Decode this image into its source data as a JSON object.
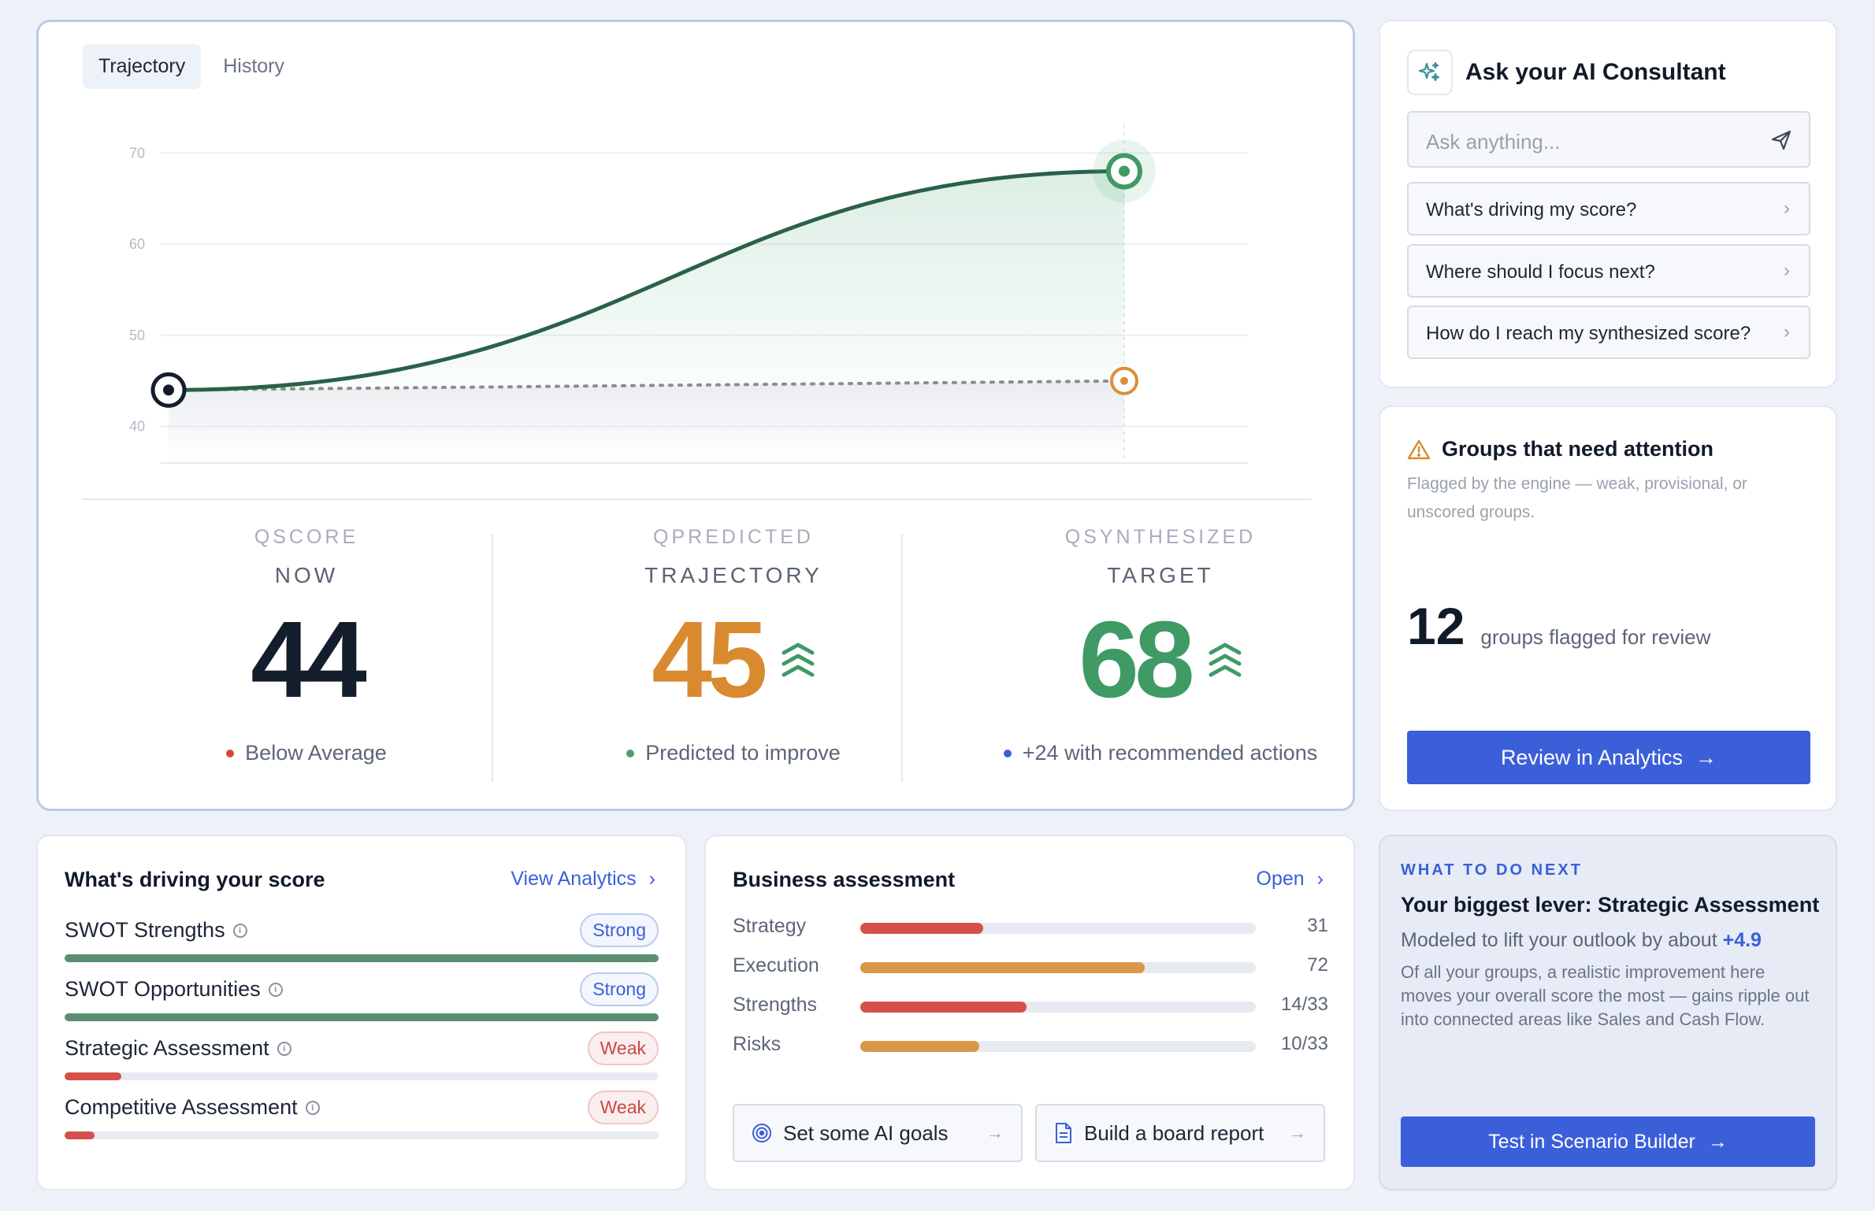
{
  "hero": {
    "tabs": [
      "Trajectory",
      "History"
    ],
    "chart_data": {
      "type": "line",
      "x": [
        "now",
        "target"
      ],
      "series": [
        {
          "values": [
            44,
            68
          ],
          "style": "solid",
          "color": "#2a6147"
        },
        {
          "values": [
            44,
            45
          ],
          "style": "dotted",
          "color": "#d98f3a"
        }
      ],
      "ylim": [
        36,
        74
      ],
      "yticks": [
        "70",
        "60",
        "50",
        "40"
      ]
    },
    "stats": [
      {
        "label1": "QSCORE",
        "label2": "NOW",
        "value": "44",
        "note": "Below Average",
        "color": "#141d2b",
        "dot": "#d9453b"
      },
      {
        "label1": "QPREDICTED",
        "label2": "TRAJECTORY",
        "value": "45",
        "note": "Predicted to improve",
        "color": "#d98a2f",
        "dot": "#4aa06c"
      },
      {
        "label1": "QSYNTHESIZED",
        "label2": "TARGET",
        "value": "68",
        "note": "+24 with recommended actions",
        "color": "#3f9a66",
        "dot": "#3b5fd9"
      }
    ]
  },
  "consult": {
    "title": "Ask your AI Consultant",
    "placeholder": "Ask anything...",
    "questions": [
      "What's driving my score?",
      "Where should I focus next?",
      "How do I reach my synthesized score?"
    ]
  },
  "attention": {
    "title": "Groups that need attention",
    "subtitle": "Flagged by the engine — weak, provisional, or unscored groups.",
    "count": "12",
    "count_label": "groups flagged for review",
    "button": "Review in Analytics"
  },
  "drivers": {
    "title": "What's driving your score",
    "link": "View Analytics",
    "items": [
      {
        "name": "SWOT Strengths",
        "badge": "Strong",
        "kind": "strong",
        "level": 1.0
      },
      {
        "name": "SWOT Opportunities",
        "badge": "Strong",
        "kind": "strong",
        "level": 1.0
      },
      {
        "name": "Strategic Assessment",
        "badge": "Weak",
        "kind": "weak",
        "level": 0.095
      },
      {
        "name": "Competitive Assessment",
        "badge": "Weak",
        "kind": "weak",
        "level": 0.05
      }
    ]
  },
  "business": {
    "title": "Business assessment",
    "link": "Open",
    "rows": [
      {
        "label": "Strategy",
        "value": "31",
        "level": 0.31,
        "color": "#d4514b"
      },
      {
        "label": "Execution",
        "value": "72",
        "level": 0.72,
        "color": "#d9974a"
      },
      {
        "label": "Strengths",
        "value": "14/33",
        "level": 0.42,
        "color": "#d4514b"
      },
      {
        "label": "Risks",
        "value": "10/33",
        "level": 0.3,
        "color": "#d9974a"
      }
    ],
    "actions": [
      "Set some AI goals",
      "Build a board report"
    ]
  },
  "next": {
    "eyebrow": "WHAT TO DO NEXT",
    "heading": "Your biggest lever: Strategic Assessment",
    "lift_text": "Modeled to lift your outlook by about",
    "lift_value": "+4.9",
    "description": "Of all your groups, a realistic improvement here moves your overall score the most — gains ripple out into connected areas like Sales and Cash Flow.",
    "button": "Test in Scenario Builder"
  }
}
